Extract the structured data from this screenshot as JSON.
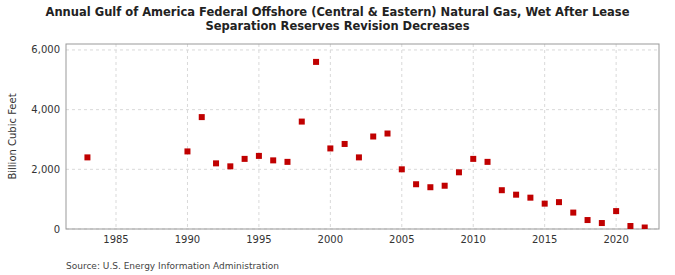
{
  "chart_data": {
    "type": "scatter",
    "title": "Annual Gulf of America Federal Offshore (Central & Eastern) Natural Gas, Wet After Lease\nSeparation Reserves Revision Decreases",
    "y_label": "Billion Cubic Feet",
    "source": "Source: U.S. Energy Information Administration",
    "x": [
      1983,
      1990,
      1991,
      1992,
      1993,
      1994,
      1995,
      1996,
      1997,
      1998,
      1999,
      2000,
      2001,
      2002,
      2003,
      2004,
      2005,
      2006,
      2007,
      2008,
      2009,
      2010,
      2011,
      2012,
      2013,
      2014,
      2015,
      2016,
      2017,
      2018,
      2019,
      2020,
      2021,
      2022
    ],
    "values": [
      2400,
      2600,
      3750,
      2200,
      2100,
      2350,
      2450,
      2300,
      2250,
      3600,
      5600,
      2700,
      2850,
      2400,
      3100,
      3200,
      2000,
      1500,
      1400,
      1450,
      1900,
      2350,
      2250,
      1300,
      1150,
      1050,
      850,
      900,
      550,
      300,
      200,
      600,
      100,
      50
    ],
    "color": "#c00000",
    "marker": "square",
    "xlim": [
      1981.5,
      2023
    ],
    "ylim": [
      0,
      6200
    ],
    "xticks": [
      1985,
      1990,
      1995,
      2000,
      2005,
      2010,
      2015,
      2020
    ],
    "yticks": [
      {
        "value": 0,
        "label": "0"
      },
      {
        "value": 2000,
        "label": "2,000"
      },
      {
        "value": 4000,
        "label": "4,000"
      },
      {
        "value": 6000,
        "label": "6,000"
      }
    ],
    "grid": true
  }
}
